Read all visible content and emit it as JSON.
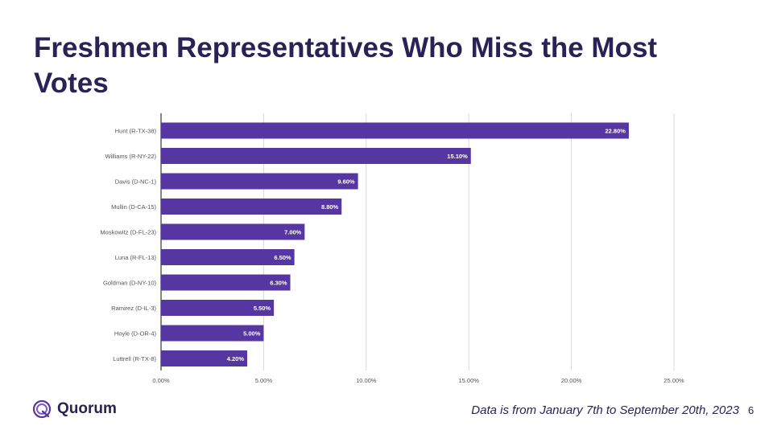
{
  "slide": {
    "title": "Freshmen Representatives Who Miss the Most Votes",
    "footnote": "Data is from January 7th to September 20th, 2023",
    "page_number": "6"
  },
  "brand": {
    "name": "Quorum",
    "logo_icon": "quorum-logo-icon",
    "color": "#2a2255"
  },
  "colors": {
    "bar": "#5636a0",
    "grid": "#d9d9d9",
    "label": "#555555"
  },
  "chart_data": {
    "type": "bar",
    "orientation": "horizontal",
    "categories": [
      "Hunt (R-TX-38)",
      "Williams (R-NY-22)",
      "Davis (D-NC-1)",
      "Mullin (D-CA-15)",
      "Moskowitz (D-FL-23)",
      "Luna (R-FL-13)",
      "Goldman (D-NY-10)",
      "Ramirez (D-IL-3)",
      "Hoyle (D-OR-4)",
      "Luttrell (R-TX-8)"
    ],
    "values": [
      22.8,
      15.1,
      9.6,
      8.8,
      7.0,
      6.5,
      6.3,
      5.5,
      5.0,
      4.2
    ],
    "value_labels": [
      "22.80%",
      "15.10%",
      "9.60%",
      "8.80%",
      "7.00%",
      "6.50%",
      "6.30%",
      "5.50%",
      "5.00%",
      "4.20%"
    ],
    "x_ticks": [
      0,
      5,
      10,
      15,
      20,
      25
    ],
    "x_tick_labels": [
      "0.00%",
      "5.00%",
      "10.00%",
      "15.00%",
      "20.00%",
      "25.00%"
    ],
    "xlim": [
      0,
      25
    ],
    "grid": true,
    "legend": "none"
  }
}
